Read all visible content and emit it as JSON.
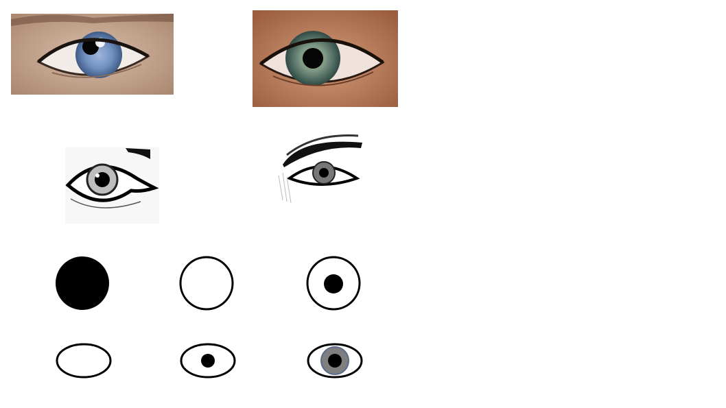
{
  "palette": {
    "background": "#ffffff",
    "stroke": "#000000",
    "pupil": "#000000",
    "iris_gray": "#7f7f7f",
    "blue_iris": "#6f8fbf",
    "green_iris": "#6f8f7f",
    "skin_light": "#c9ab95",
    "skin_tan": "#b8754f"
  },
  "photos": [
    {
      "name": "blue-eye-photo",
      "icon": "blue-eye-photo-icon"
    },
    {
      "name": "green-eye-photo",
      "icon": "green-eye-photo-icon"
    }
  ],
  "sketches": [
    {
      "name": "eye-sketch-left",
      "icon": "eye-sketch-icon"
    },
    {
      "name": "eye-sketch-eyebrow",
      "icon": "eye-sketch-with-eyebrow-icon"
    }
  ],
  "circle_steps": [
    {
      "name": "filled-circle",
      "fill": "#000000"
    },
    {
      "name": "empty-circle",
      "fill": "#ffffff"
    },
    {
      "name": "circle-with-pupil",
      "fill": "#ffffff",
      "pupil": "#000000"
    }
  ],
  "eye_steps": [
    {
      "name": "empty-eye-outline"
    },
    {
      "name": "eye-outline-with-pupil",
      "pupil": "#000000"
    },
    {
      "name": "eye-outline-with-iris",
      "iris": "#7f7f7f",
      "pupil": "#000000"
    }
  ]
}
